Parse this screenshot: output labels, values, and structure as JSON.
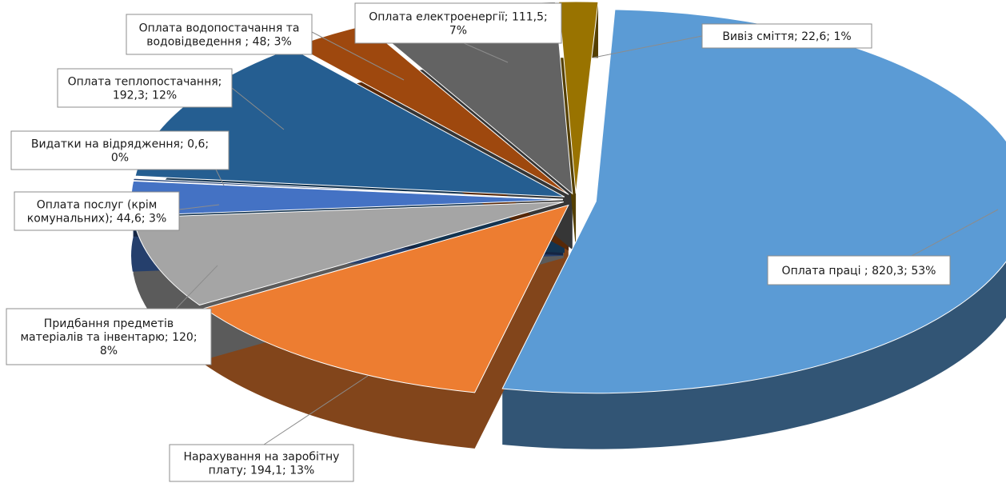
{
  "chart_data": {
    "type": "pie",
    "style": "3d-exploded",
    "slices": [
      {
        "name": "Оплата праці",
        "value": 820.3,
        "percent": 53,
        "color": "#5b9bd5",
        "label_lines": [
          "Оплата праці  ; 820,3; 53%"
        ]
      },
      {
        "name": "Нарахування на заробітну плату",
        "value": 194.1,
        "percent": 13,
        "color": "#ed7d31",
        "label_lines": [
          "Нарахування на заробітну",
          "плату; 194,1; 13%"
        ]
      },
      {
        "name": "Придбання предметів матеріалів та інвентарю",
        "value": 120,
        "percent": 8,
        "color": "#a5a5a5",
        "label_lines": [
          "Придбання предметів",
          "матеріалів та інвентарю; 120;",
          "8%"
        ]
      },
      {
        "name": "Оплата послуг (крім комунальних)",
        "value": 44.6,
        "percent": 3,
        "color": "#4472c4",
        "label_lines": [
          "Оплата послуг (крім",
          "комунальних); 44,6; 3%"
        ]
      },
      {
        "name": "Видатки на відрядження",
        "value": 0.6,
        "percent": 0,
        "color": "#264478",
        "label_lines": [
          "Видатки на відрядження; 0,6;",
          "0%"
        ]
      },
      {
        "name": "Оплата теплопостачання",
        "value": 192.3,
        "percent": 12,
        "color": "#255e91",
        "label_lines": [
          "Оплата теплопостачання;",
          "192,3; 12%"
        ]
      },
      {
        "name": "Оплата водопостачання та водовідведення",
        "value": 48,
        "percent": 3,
        "color": "#9e480e",
        "label_lines": [
          "Оплата водопостачання та",
          "водовідведення ; 48; 3%"
        ]
      },
      {
        "name": "Оплата електроенергії",
        "value": 111.5,
        "percent": 7,
        "color": "#636363",
        "label_lines": [
          "Оплата електроенергії; 111,5;",
          "7%"
        ]
      },
      {
        "name": "Вивіз сміття",
        "value": 22.6,
        "percent": 1,
        "color": "#997300",
        "label_lines": [
          "Вивіз сміття; 22,6; 1%"
        ]
      }
    ],
    "title": "",
    "legend": "none",
    "data_labels": "category; value; percent"
  }
}
